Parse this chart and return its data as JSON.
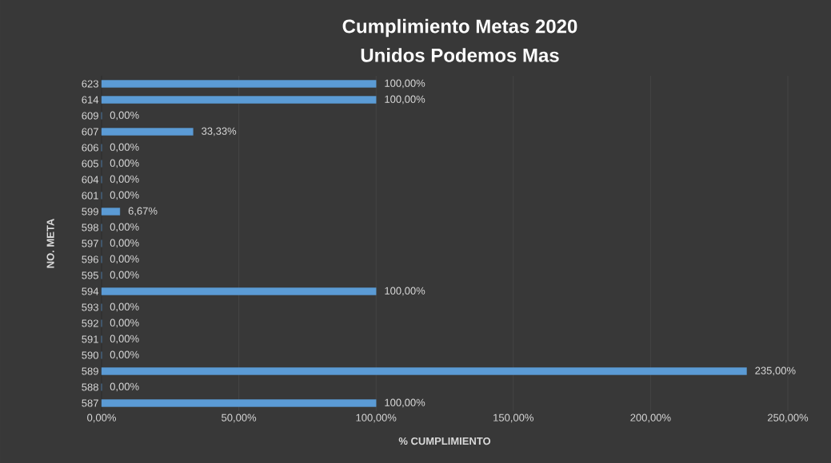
{
  "chart_data": {
    "type": "bar",
    "orientation": "horizontal",
    "title": "Cumplimiento Metas 2020",
    "subtitle": "Unidos Podemos Mas",
    "xlabel": "% CUMPLIMIENTO",
    "ylabel": "NO. META",
    "categories": [
      "623",
      "614",
      "609",
      "607",
      "606",
      "605",
      "604",
      "601",
      "599",
      "598",
      "597",
      "596",
      "595",
      "594",
      "593",
      "592",
      "591",
      "590",
      "589",
      "588",
      "587"
    ],
    "values": [
      100,
      100,
      0,
      33.33,
      0,
      0,
      0,
      0,
      6.67,
      0,
      0,
      0,
      0,
      100,
      0,
      0,
      0,
      0,
      235,
      0,
      100
    ],
    "value_labels": [
      "100,00%",
      "100,00%",
      "0,00%",
      "33,33%",
      "0,00%",
      "0,00%",
      "0,00%",
      "0,00%",
      "6,67%",
      "0,00%",
      "0,00%",
      "0,00%",
      "0,00%",
      "100,00%",
      "0,00%",
      "0,00%",
      "0,00%",
      "0,00%",
      "235,00%",
      "0,00%",
      "100,00%"
    ],
    "color": "#5b9bd5",
    "xlim": [
      0,
      250
    ],
    "xticks": [
      {
        "value": 0,
        "label": "0,00%"
      },
      {
        "value": 50,
        "label": "50,00%"
      },
      {
        "value": 100,
        "label": "100,00%"
      },
      {
        "value": 150,
        "label": "150,00%"
      },
      {
        "value": 200,
        "label": "200,00%"
      },
      {
        "value": 250,
        "label": "250,00%"
      }
    ],
    "grid": "x"
  }
}
